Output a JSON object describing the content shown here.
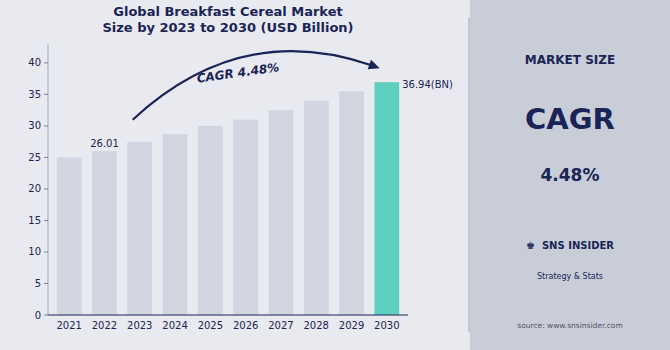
{
  "chart_data": {
    "type": "bar",
    "title": "Global Breakfast Cereal Market",
    "subtitle": "Size by 2023 to 2030 (USD Billion)",
    "categories": [
      "2021",
      "2022",
      "2023",
      "2024",
      "2025",
      "2026",
      "2027",
      "2028",
      "2029",
      "2030"
    ],
    "values": [
      25.0,
      26.01,
      27.5,
      28.7,
      30.0,
      31.0,
      32.5,
      34.0,
      35.5,
      36.94
    ],
    "colors": [
      "#d0d5e0",
      "#d0d5e0",
      "#d0d5e0",
      "#d0d5e0",
      "#d0d5e0",
      "#d0d5e0",
      "#d0d5e0",
      "#d0d5e0",
      "#d0d5e0",
      "#5ecfc1"
    ],
    "ylim": [
      0,
      43
    ],
    "yticks": [
      0,
      5,
      10,
      15,
      20,
      25,
      30,
      35,
      40
    ],
    "grid": false,
    "annotations": [
      {
        "text": "26.01",
        "category": "2022"
      },
      {
        "text": "36.94(BN)",
        "category": "2030"
      },
      {
        "text": "CAGR 4.48%",
        "from": "2023",
        "to": "2030"
      }
    ],
    "panel_texts": [
      "MARKET SIZE",
      "CAGR",
      "4.48%",
      "♚  SNS INSIDER",
      "Strategy & Stats",
      "source: www.snsinsider.com"
    ]
  }
}
